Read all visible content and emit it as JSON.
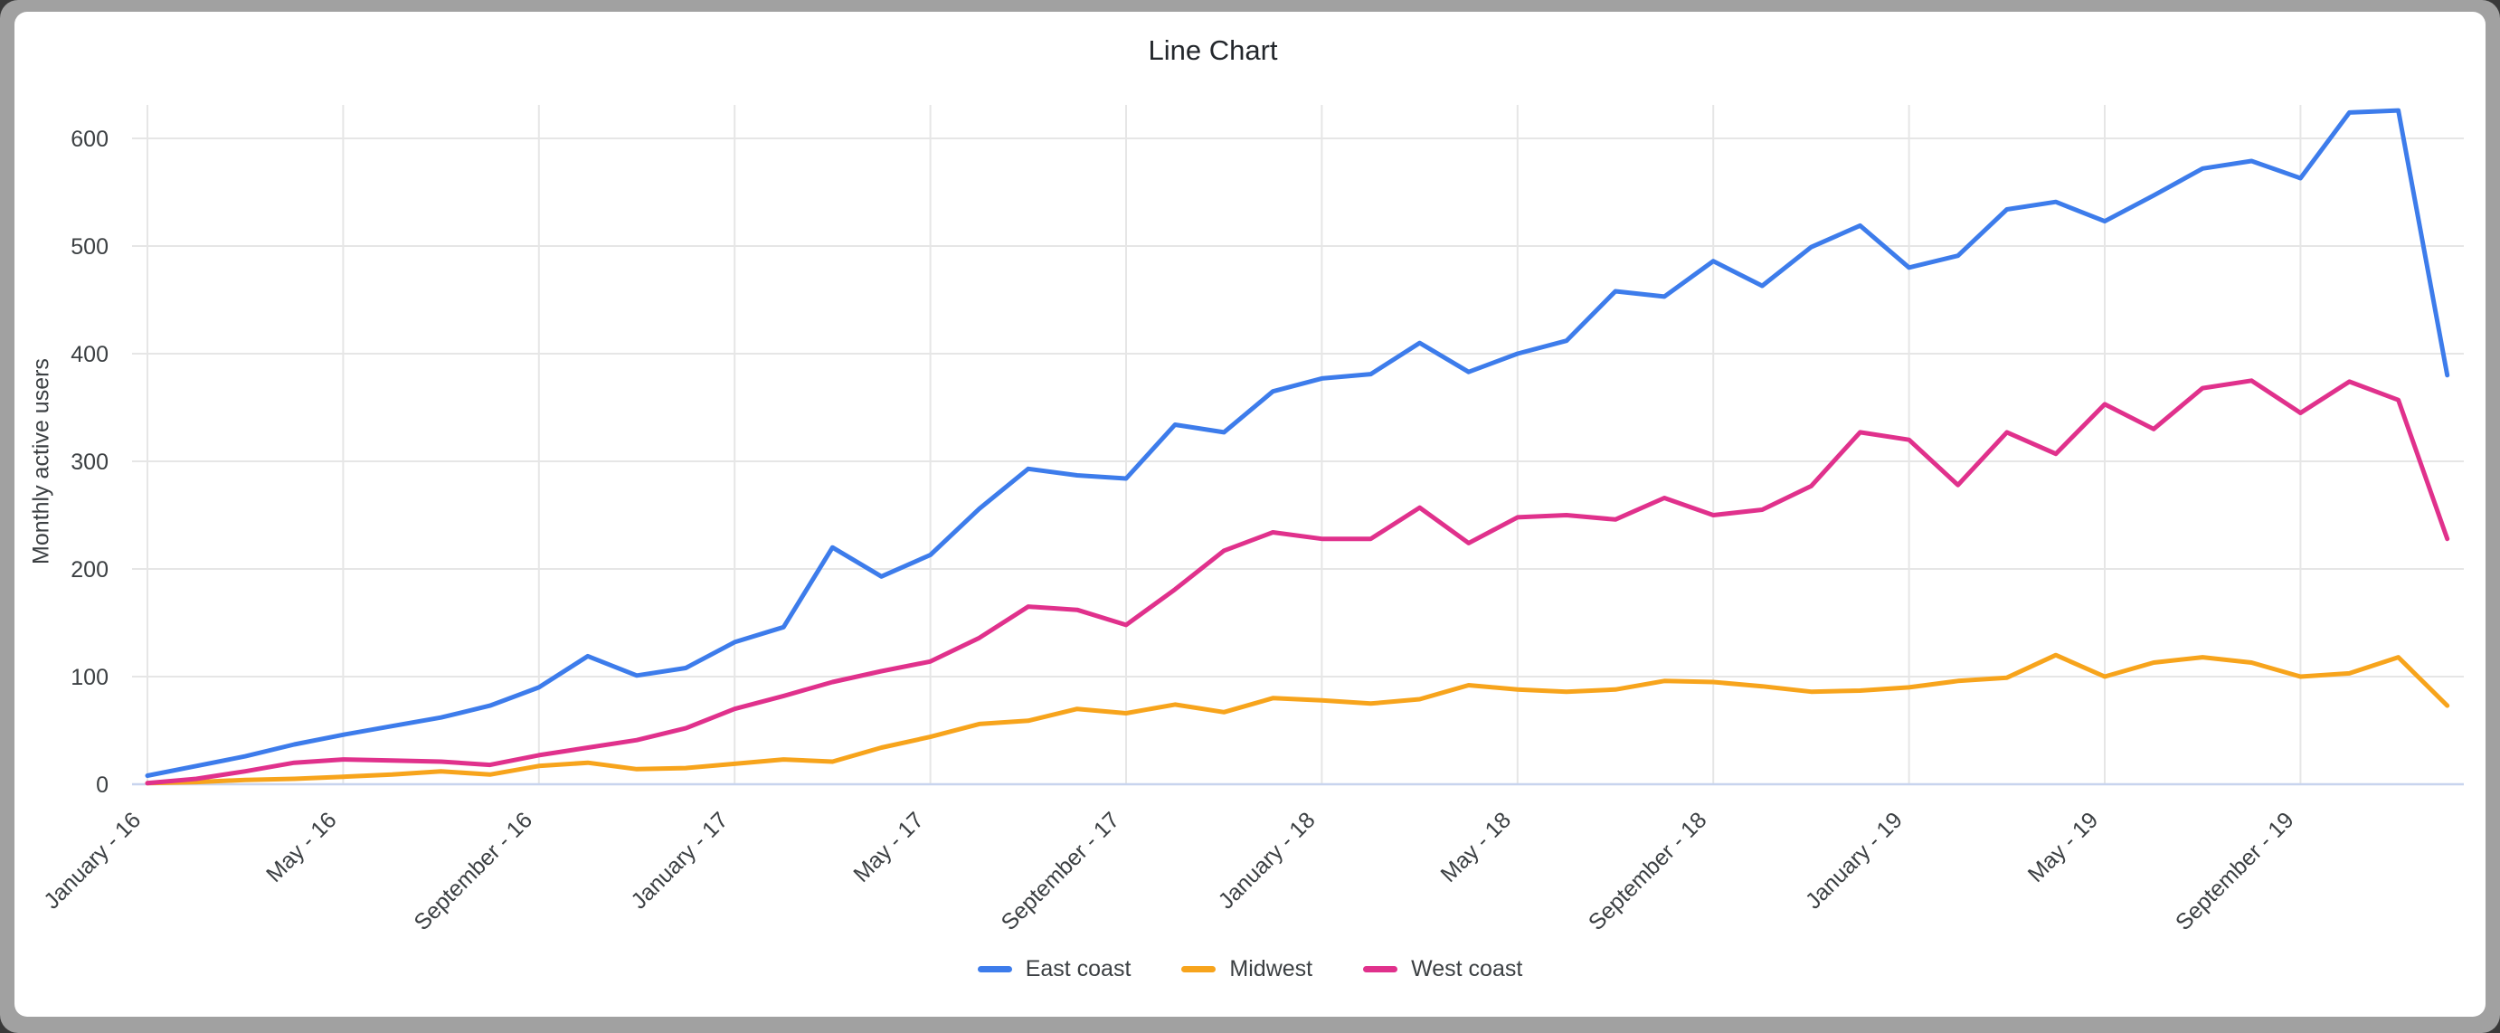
{
  "chart_data": {
    "type": "line",
    "title": "Line Chart",
    "xlabel": "",
    "ylabel": "Monthly active users",
    "ylim": [
      0,
      636
    ],
    "grid": true,
    "legend_position": "bottom",
    "y_ticks": [
      0,
      100,
      200,
      300,
      400,
      500,
      600
    ],
    "y_tick_labels": [
      "0",
      "100",
      "200",
      "300",
      "400",
      "500",
      "600"
    ],
    "x_tick_positions": [
      0,
      4,
      8,
      12,
      16,
      20,
      24,
      28,
      32,
      36,
      40,
      44
    ],
    "x_tick_labels": [
      "January - 16",
      "May - 16",
      "September - 16",
      "January - 17",
      "May - 17",
      "September - 17",
      "January - 18",
      "May - 18",
      "September - 18",
      "January - 19",
      "May - 19",
      "September - 19"
    ],
    "x": [
      "January - 16",
      "February - 16",
      "March - 16",
      "April - 16",
      "May - 16",
      "June - 16",
      "July - 16",
      "August - 16",
      "September - 16",
      "October - 16",
      "November - 16",
      "December - 16",
      "January - 17",
      "February - 17",
      "March - 17",
      "April - 17",
      "May - 17",
      "June - 17",
      "July - 17",
      "August - 17",
      "September - 17",
      "October - 17",
      "November - 17",
      "December - 17",
      "January - 18",
      "February - 18",
      "March - 18",
      "April - 18",
      "May - 18",
      "June - 18",
      "July - 18",
      "August - 18",
      "September - 18",
      "October - 18",
      "November - 18",
      "December - 18",
      "January - 19",
      "February - 19",
      "March - 19",
      "April - 19",
      "May - 19",
      "June - 19",
      "July - 19",
      "August - 19",
      "September - 19",
      "October - 19",
      "November - 19",
      "December - 19"
    ],
    "series": [
      {
        "name": "East coast",
        "color": "#3D7CEB",
        "values": [
          8,
          17,
          26,
          37,
          46,
          54,
          62,
          73,
          90,
          119,
          101,
          108,
          132,
          146,
          220,
          193,
          213,
          256,
          293,
          287,
          284,
          334,
          327,
          365,
          377,
          381,
          410,
          383,
          400,
          412,
          458,
          453,
          486,
          463,
          499,
          519,
          480,
          491,
          534,
          541,
          523,
          547,
          572,
          579,
          563,
          624,
          626,
          380
        ]
      },
      {
        "name": "Midwest",
        "color": "#F7A41C",
        "values": [
          1,
          2,
          4,
          5,
          7,
          9,
          12,
          9,
          17,
          20,
          14,
          15,
          19,
          23,
          21,
          34,
          44,
          56,
          59,
          70,
          66,
          74,
          67,
          80,
          78,
          75,
          79,
          92,
          88,
          86,
          88,
          96,
          95,
          91,
          86,
          87,
          90,
          96,
          99,
          120,
          100,
          113,
          118,
          113,
          100,
          103,
          118,
          73
        ]
      },
      {
        "name": "West coast",
        "color": "#E0318C",
        "values": [
          1,
          5,
          12,
          20,
          23,
          22,
          21,
          18,
          27,
          34,
          41,
          52,
          70,
          82,
          95,
          105,
          114,
          136,
          165,
          162,
          148,
          181,
          217,
          234,
          228,
          228,
          257,
          224,
          248,
          250,
          246,
          266,
          250,
          255,
          277,
          327,
          320,
          278,
          327,
          307,
          353,
          330,
          368,
          375,
          345,
          374,
          357,
          228
        ]
      }
    ],
    "colors": {
      "gridline": "#E6E6E6",
      "baseline": "#C8D4EE",
      "tick_text": "#3C4043",
      "title_text": "#23272C",
      "card_background": "#FFFFFF",
      "frame_background": "#A1A1A1"
    }
  }
}
